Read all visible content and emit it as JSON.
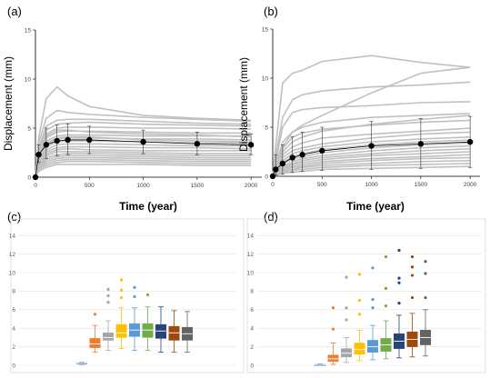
{
  "chart_data": [
    {
      "panel": "(a)",
      "type": "line",
      "xlabel": "Time (year)",
      "ylabel": "Displacement (mm)",
      "xlim": [
        0,
        2100
      ],
      "ylim": [
        0,
        15
      ],
      "x_ticks": [
        "0",
        "500",
        "1000",
        "1500",
        "2000"
      ],
      "y_ticks": [
        "0",
        "5",
        "10",
        "15"
      ],
      "colors": {
        "individual": "#c0c0c0",
        "mean": "#000000"
      },
      "x": [
        0,
        30,
        100,
        200,
        300,
        500,
        1000,
        1500,
        2000
      ],
      "mean": [
        0,
        2.3,
        3.3,
        3.7,
        3.8,
        3.8,
        3.6,
        3.4,
        3.3
      ],
      "lower": [
        0,
        1.5,
        1.9,
        2.2,
        2.3,
        2.4,
        2.4,
        2.3,
        2.3
      ],
      "upper": [
        0,
        3.3,
        5.0,
        5.3,
        5.4,
        5.2,
        4.8,
        4.6,
        4.4
      ],
      "series": [
        {
          "values": [
            0,
            4.0,
            8.0,
            9.2,
            8.3,
            7.2,
            6.3,
            6.0,
            5.8
          ]
        },
        {
          "values": [
            0,
            3.5,
            6.0,
            6.8,
            6.6,
            6.4,
            6.1,
            5.9,
            5.7
          ]
        },
        {
          "values": [
            0,
            3.0,
            5.2,
            5.8,
            5.9,
            5.9,
            5.7,
            5.5,
            5.4
          ]
        },
        {
          "values": [
            0,
            2.8,
            4.8,
            5.4,
            5.5,
            5.6,
            5.4,
            5.3,
            5.2
          ]
        },
        {
          "values": [
            0,
            2.6,
            4.4,
            5.0,
            5.1,
            5.1,
            5.0,
            5.0,
            4.9
          ]
        },
        {
          "values": [
            0,
            2.4,
            4.0,
            4.6,
            4.7,
            4.7,
            4.6,
            4.5,
            4.5
          ]
        },
        {
          "values": [
            0,
            2.2,
            3.7,
            4.2,
            4.3,
            4.3,
            4.2,
            4.2,
            4.2
          ]
        },
        {
          "values": [
            0,
            2.0,
            3.4,
            3.9,
            4.0,
            4.0,
            3.9,
            3.9,
            3.8
          ]
        },
        {
          "values": [
            0,
            1.9,
            3.1,
            3.6,
            3.7,
            3.7,
            3.6,
            3.5,
            3.5
          ]
        },
        {
          "values": [
            0,
            1.7,
            2.8,
            3.3,
            3.4,
            3.4,
            3.3,
            3.2,
            3.2
          ]
        },
        {
          "values": [
            0,
            1.6,
            2.6,
            3.0,
            3.1,
            3.1,
            3.0,
            3.0,
            2.9
          ]
        },
        {
          "values": [
            0,
            1.4,
            2.4,
            2.8,
            2.9,
            2.8,
            2.7,
            2.7,
            2.7
          ]
        },
        {
          "values": [
            0,
            1.3,
            2.2,
            2.6,
            2.6,
            2.6,
            2.5,
            2.4,
            2.4
          ]
        },
        {
          "values": [
            0,
            1.2,
            2.0,
            2.3,
            2.4,
            2.4,
            2.3,
            2.2,
            2.2
          ]
        },
        {
          "values": [
            0,
            1.1,
            1.8,
            2.1,
            2.2,
            2.2,
            2.1,
            2.0,
            2.0
          ]
        },
        {
          "values": [
            0,
            1.0,
            1.6,
            1.9,
            2.0,
            2.0,
            1.9,
            1.8,
            1.8
          ]
        },
        {
          "values": [
            0,
            0.9,
            1.4,
            1.7,
            1.8,
            1.8,
            1.7,
            1.6,
            1.6
          ]
        },
        {
          "values": [
            0,
            0.8,
            1.2,
            1.5,
            1.6,
            1.6,
            1.5,
            1.4,
            1.4
          ]
        },
        {
          "values": [
            0,
            0.6,
            1.0,
            1.3,
            1.3,
            1.3,
            1.3,
            1.2,
            1.2
          ]
        },
        {
          "values": [
            0,
            2.5,
            4.2,
            4.8,
            4.8,
            4.6,
            4.4,
            4.3,
            4.1
          ]
        },
        {
          "values": [
            0,
            2.1,
            3.5,
            4.0,
            4.1,
            4.1,
            3.8,
            3.7,
            3.6
          ]
        }
      ]
    },
    {
      "panel": "(b)",
      "type": "line",
      "xlabel": "Time (year)",
      "ylabel": "Displacement (mm)",
      "xlim": [
        0,
        2100
      ],
      "ylim": [
        0,
        15
      ],
      "x_ticks": [
        "0",
        "500",
        "1000",
        "1500",
        "2000"
      ],
      "y_ticks": [
        "0",
        "5",
        "10",
        "15"
      ],
      "colors": {
        "individual": "#c0c0c0",
        "mean": "#000000"
      },
      "x": [
        0,
        30,
        100,
        200,
        300,
        500,
        1000,
        1500,
        2000
      ],
      "mean": [
        0,
        0.7,
        1.3,
        1.9,
        2.2,
        2.6,
        3.1,
        3.3,
        3.5
      ],
      "lower": [
        0,
        0.1,
        0.2,
        0.4,
        0.5,
        0.6,
        0.7,
        0.8,
        0.9
      ],
      "upper": [
        0,
        2.2,
        3.2,
        4.0,
        4.5,
        5.0,
        5.6,
        5.9,
        6.1
      ],
      "series": [
        {
          "values": [
            0,
            3.0,
            9.5,
            10.5,
            10.8,
            11.7,
            12.3,
            11.6,
            11.1
          ]
        },
        {
          "values": [
            0,
            2.0,
            6.0,
            7.8,
            8.3,
            8.7,
            9.1,
            9.3,
            9.6
          ]
        },
        {
          "values": [
            0,
            1.0,
            3.0,
            4.5,
            5.2,
            6.2,
            8.5,
            10.5,
            11.1
          ]
        },
        {
          "values": [
            0,
            1.5,
            5.0,
            6.5,
            6.8,
            7.0,
            7.2,
            7.5,
            7.6
          ]
        },
        {
          "values": [
            0,
            1.2,
            3.5,
            4.5,
            5.0,
            5.5,
            6.0,
            6.2,
            6.4
          ]
        },
        {
          "values": [
            0,
            1.0,
            2.5,
            3.5,
            4.0,
            4.6,
            5.3,
            5.8,
            6.2
          ]
        },
        {
          "values": [
            0,
            0.8,
            2.2,
            3.0,
            3.4,
            3.9,
            4.3,
            4.6,
            4.9
          ]
        },
        {
          "values": [
            0,
            0.7,
            1.9,
            2.6,
            2.9,
            3.3,
            3.9,
            4.3,
            4.5
          ]
        },
        {
          "values": [
            0,
            0.6,
            1.6,
            2.3,
            2.6,
            3.0,
            3.5,
            3.8,
            4.0
          ]
        },
        {
          "values": [
            0,
            0.5,
            1.4,
            2.0,
            2.3,
            2.7,
            3.2,
            3.5,
            3.7
          ]
        },
        {
          "values": [
            0,
            0.5,
            1.2,
            1.8,
            2.0,
            2.4,
            2.9,
            3.2,
            3.4
          ]
        },
        {
          "values": [
            0,
            0.4,
            1.0,
            1.5,
            1.8,
            2.1,
            2.6,
            2.9,
            3.1
          ]
        },
        {
          "values": [
            0,
            0.4,
            0.9,
            1.3,
            1.6,
            1.9,
            2.3,
            2.6,
            2.8
          ]
        },
        {
          "values": [
            0,
            0.3,
            0.8,
            1.2,
            1.4,
            1.7,
            2.1,
            2.3,
            2.5
          ]
        },
        {
          "values": [
            0,
            0.3,
            0.7,
            1.0,
            1.2,
            1.5,
            1.8,
            2.0,
            2.2
          ]
        },
        {
          "values": [
            0,
            0.2,
            0.6,
            0.9,
            1.0,
            1.3,
            1.6,
            1.8,
            1.9
          ]
        },
        {
          "values": [
            0,
            0.2,
            0.5,
            0.7,
            0.9,
            1.1,
            1.3,
            1.5,
            1.6
          ]
        },
        {
          "values": [
            0,
            0.1,
            0.4,
            0.6,
            0.7,
            0.9,
            1.1,
            1.2,
            1.3
          ]
        },
        {
          "values": [
            0,
            0.1,
            0.3,
            0.4,
            0.5,
            0.7,
            0.8,
            0.9,
            1.0
          ]
        },
        {
          "values": [
            0,
            0.8,
            2.8,
            4.0,
            4.4,
            4.8,
            5.2,
            5.5,
            5.7
          ]
        }
      ]
    },
    {
      "panel": "(c)",
      "type": "box",
      "ylim": [
        0,
        15
      ],
      "y_ticks": [
        "0",
        "2",
        "4",
        "6",
        "8",
        "10",
        "12",
        "14"
      ],
      "boxes": [
        {
          "color": "#4472c4",
          "min": 0.1,
          "q1": 0.15,
          "median": 0.2,
          "q3": 0.25,
          "max": 0.3,
          "outliers": []
        },
        {
          "color": "#ed7d31",
          "min": 1.4,
          "q1": 1.9,
          "median": 2.3,
          "q3": 2.9,
          "max": 4.3,
          "outliers": [
            5.5
          ]
        },
        {
          "color": "#a5a5a5",
          "min": 1.6,
          "q1": 2.7,
          "median": 3.0,
          "q3": 3.5,
          "max": 4.8,
          "outliers": [
            6.8,
            7.5,
            8.2
          ]
        },
        {
          "color": "#ffc000",
          "min": 1.8,
          "q1": 3.0,
          "median": 3.5,
          "q3": 4.4,
          "max": 6.2,
          "outliers": [
            7.3,
            8.1,
            9.2
          ]
        },
        {
          "color": "#5b9bd5",
          "min": 1.6,
          "q1": 3.1,
          "median": 3.8,
          "q3": 4.5,
          "max": 6.2,
          "outliers": [
            7.4,
            8.4
          ]
        },
        {
          "color": "#70ad47",
          "min": 1.6,
          "q1": 3.0,
          "median": 3.8,
          "q3": 4.5,
          "max": 6.3,
          "outliers": [
            7.6
          ]
        },
        {
          "color": "#264478",
          "min": 1.4,
          "q1": 2.9,
          "median": 3.7,
          "q3": 4.4,
          "max": 6.3,
          "outliers": []
        },
        {
          "color": "#9e480e",
          "min": 1.4,
          "q1": 2.7,
          "median": 3.5,
          "q3": 4.2,
          "max": 5.9,
          "outliers": []
        },
        {
          "color": "#636363",
          "min": 1.4,
          "q1": 2.7,
          "median": 3.4,
          "q3": 4.1,
          "max": 5.8,
          "outliers": []
        }
      ]
    },
    {
      "panel": "(d)",
      "type": "box",
      "ylim": [
        0,
        15
      ],
      "y_ticks": [
        "0",
        "2",
        "4",
        "6",
        "8",
        "10",
        "12",
        "14"
      ],
      "boxes": [
        {
          "color": "#4472c4",
          "min": 0.0,
          "q1": 0.05,
          "median": 0.08,
          "q3": 0.1,
          "max": 0.15,
          "outliers": []
        },
        {
          "color": "#ed7d31",
          "min": 0.1,
          "q1": 0.4,
          "median": 0.7,
          "q3": 1.1,
          "max": 2.4,
          "outliers": [
            3.9,
            6.2
          ]
        },
        {
          "color": "#a5a5a5",
          "min": 0.3,
          "q1": 0.9,
          "median": 1.3,
          "q3": 1.8,
          "max": 3.0,
          "outliers": [
            4.9,
            6.2,
            9.5
          ]
        },
        {
          "color": "#ffc000",
          "min": 0.5,
          "q1": 1.2,
          "median": 1.7,
          "q3": 2.4,
          "max": 3.8,
          "outliers": [
            5.5,
            7.0,
            9.8
          ]
        },
        {
          "color": "#5b9bd5",
          "min": 0.6,
          "q1": 1.4,
          "median": 2.0,
          "q3": 2.7,
          "max": 4.3,
          "outliers": [
            6.2,
            7.1,
            10.5
          ]
        },
        {
          "color": "#70ad47",
          "min": 0.7,
          "q1": 1.5,
          "median": 2.2,
          "q3": 2.9,
          "max": 4.8,
          "outliers": [
            6.4,
            8.3,
            11.7
          ]
        },
        {
          "color": "#264478",
          "min": 0.8,
          "q1": 1.8,
          "median": 2.6,
          "q3": 3.4,
          "max": 5.4,
          "outliers": [
            6.7,
            8.9,
            9.4,
            12.4
          ]
        },
        {
          "color": "#9e480e",
          "min": 0.9,
          "q1": 2.0,
          "median": 2.8,
          "q3": 3.6,
          "max": 5.6,
          "outliers": [
            7.3,
            9.7,
            10.6,
            11.7
          ]
        },
        {
          "color": "#636363",
          "min": 1.0,
          "q1": 2.2,
          "median": 3.0,
          "q3": 3.8,
          "max": 6.0,
          "outliers": [
            7.3,
            9.9,
            11.2
          ]
        }
      ]
    }
  ]
}
